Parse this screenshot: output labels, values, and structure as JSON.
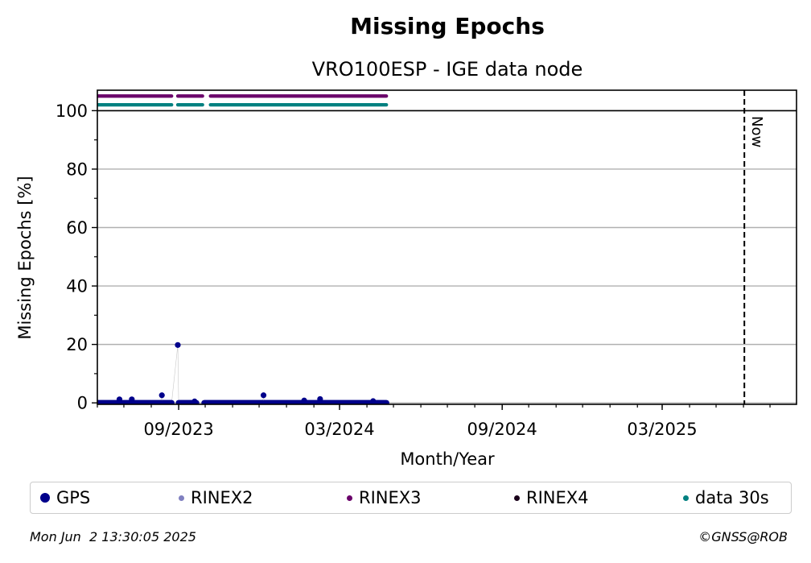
{
  "chart_data": {
    "type": "scatter",
    "title": "Missing Epochs",
    "subtitle": "VRO100ESP - IGE data node",
    "xlabel": "Month/Year",
    "ylabel": "Missing Epochs [%]",
    "y_ticks": [
      0,
      20,
      40,
      60,
      80,
      100
    ],
    "ylim": [
      -0.5,
      107
    ],
    "xlim": [
      "2023-06-01",
      "2025-07-31"
    ],
    "x_ticks": [
      {
        "date": "2023-09-01",
        "label": "09/2023"
      },
      {
        "date": "2024-03-01",
        "label": "03/2024"
      },
      {
        "date": "2024-09-01",
        "label": "09/2024"
      },
      {
        "date": "2025-03-01",
        "label": "03/2025"
      }
    ],
    "now_marker": {
      "date": "2025-06-02",
      "label": "Now"
    },
    "grid": "horizontal",
    "legend_placement": "bottom",
    "series": [
      {
        "name": "GPS",
        "color": "#00008b",
        "baseline": {
          "from": "2023-06-01",
          "to": "2024-04-23",
          "value": 0
        },
        "gaps": [
          [
            "2023-08-25",
            "2023-08-30"
          ],
          [
            "2023-09-22",
            "2023-09-29"
          ]
        ],
        "points": [
          {
            "date": "2023-06-26",
            "value": 1.2
          },
          {
            "date": "2023-07-10",
            "value": 1.2
          },
          {
            "date": "2023-08-13",
            "value": 2.6
          },
          {
            "date": "2023-08-31",
            "value": 19.8
          },
          {
            "date": "2023-09-19",
            "value": 0.5
          },
          {
            "date": "2023-12-06",
            "value": 2.6
          },
          {
            "date": "2024-01-21",
            "value": 0.8
          },
          {
            "date": "2024-02-08",
            "value": 1.3
          },
          {
            "date": "2024-04-08",
            "value": 0.6
          }
        ]
      },
      {
        "name": "RINEX2",
        "color": "#8080c0",
        "segments": []
      },
      {
        "name": "RINEX3",
        "color": "#6a006a",
        "level": 105,
        "segments": [
          [
            "2023-06-01",
            "2023-08-24"
          ],
          [
            "2023-08-31",
            "2023-09-28"
          ],
          [
            "2023-10-07",
            "2024-04-23"
          ]
        ]
      },
      {
        "name": "RINEX4",
        "color": "#1a001a",
        "segments": []
      },
      {
        "name": "data 30s",
        "color": "#008080",
        "level": 102,
        "segments": [
          [
            "2023-06-01",
            "2023-08-24"
          ],
          [
            "2023-08-31",
            "2023-09-28"
          ],
          [
            "2023-10-07",
            "2024-04-23"
          ]
        ]
      }
    ]
  },
  "footer": {
    "timestamp": "Mon Jun  2 13:30:05 2025",
    "copyright": "©GNSS@ROB"
  }
}
